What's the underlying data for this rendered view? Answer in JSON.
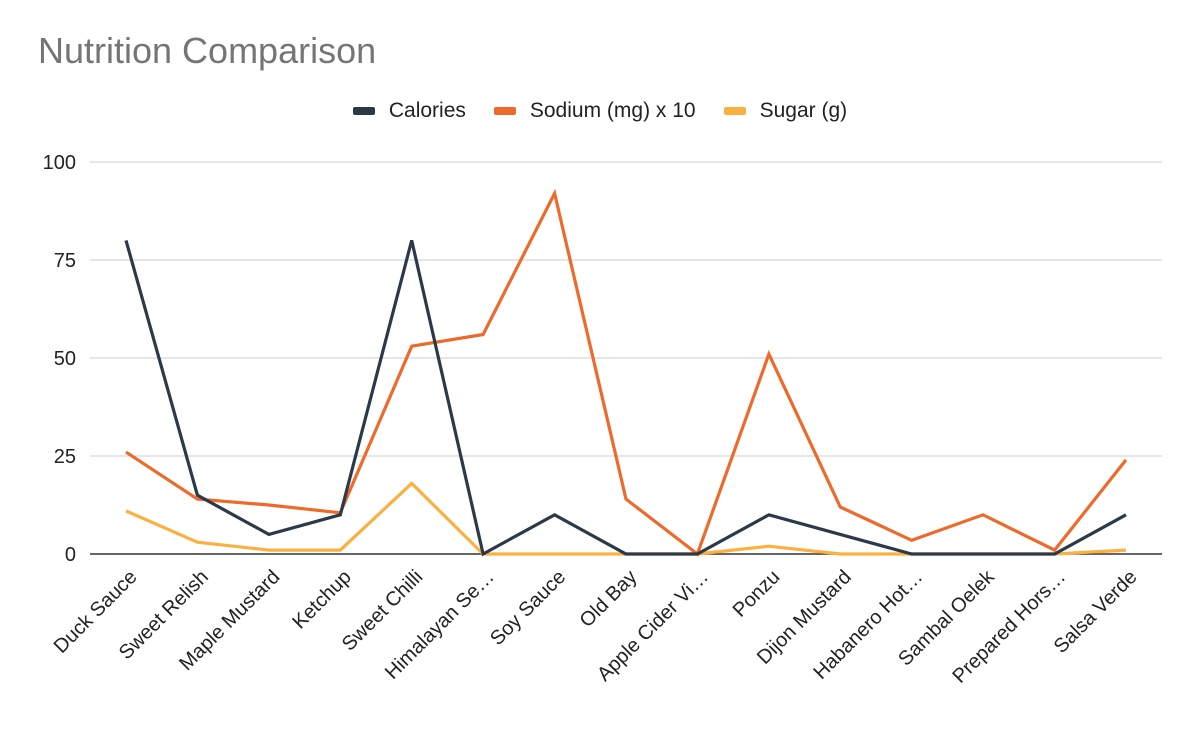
{
  "chart_data": {
    "type": "line",
    "title": "Nutrition Comparison",
    "xlabel": "",
    "ylabel": "",
    "ylim": [
      0,
      100
    ],
    "yticks": [
      0,
      25,
      50,
      75,
      100
    ],
    "grid": true,
    "legend_position": "top",
    "categories": [
      "Duck Sauce",
      "Sweet Relish",
      "Maple Mustard",
      "Ketchup",
      "Sweet Chilli",
      "Himalayan Se…",
      "Soy Sauce",
      "Old Bay",
      "Apple Cider Vi…",
      "Ponzu",
      "Dijon Mustard",
      "Habanero Hot…",
      "Sambal Oelek",
      "Prepared Hors…",
      "Salsa Verde"
    ],
    "series": [
      {
        "name": "Calories",
        "color": "#2b3a48",
        "values": [
          80,
          15,
          5,
          10,
          80,
          0,
          10,
          0,
          0,
          10,
          5,
          0,
          0,
          0,
          10
        ]
      },
      {
        "name": "Sodium (mg) x 10",
        "color": "#ee6a2a",
        "values": [
          26,
          14,
          12.5,
          10.5,
          53,
          56,
          92,
          14,
          0,
          51,
          12,
          3.5,
          10,
          1,
          24
        ]
      },
      {
        "name": "Sugar (g)",
        "color": "#fbb040",
        "values": [
          11,
          3,
          1,
          1,
          18,
          0,
          0,
          0,
          0,
          2,
          0,
          0,
          0,
          0,
          1
        ]
      }
    ]
  }
}
